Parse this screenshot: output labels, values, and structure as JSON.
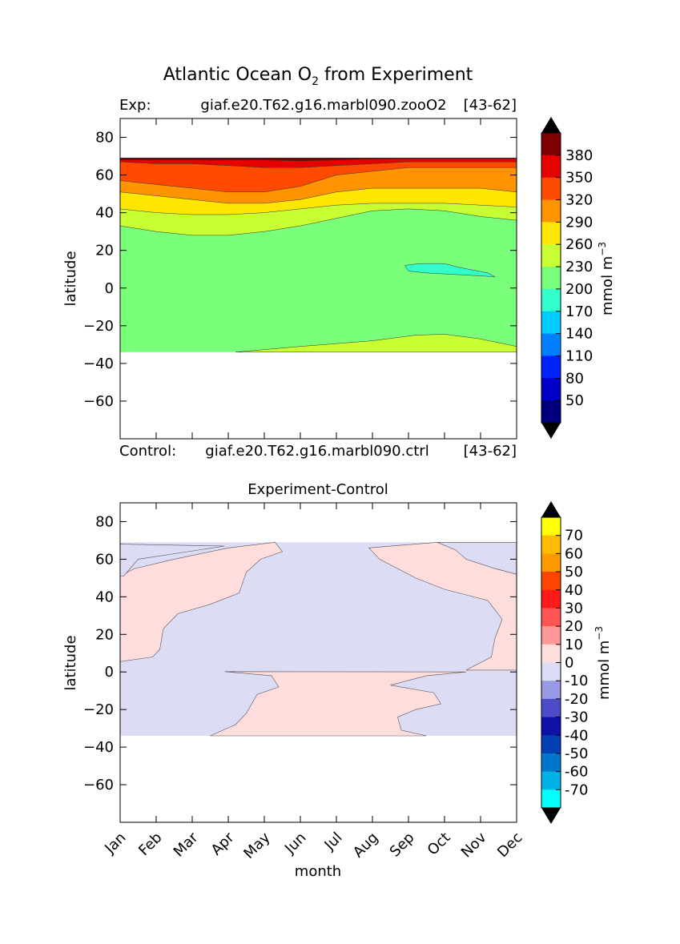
{
  "figure": {
    "title_prefix": "Atlantic Ocean O",
    "title_sub": "2",
    "title_suffix": " from Experiment"
  },
  "chart_data": [
    {
      "type": "heatmap",
      "panel": "top",
      "exp_label": "Exp:",
      "exp_name": "giaf.e20.T62.g16.marbl090.zooO2",
      "exp_range": "[43-62]",
      "ctrl_label": "Control:",
      "ctrl_name": "giaf.e20.T62.g16.marbl090.ctrl",
      "ctrl_range": "[43-62]",
      "ylabel": "latitude",
      "xlim": [
        0,
        11
      ],
      "ylim": [
        -80,
        90
      ],
      "yticks": [
        80,
        60,
        40,
        20,
        0,
        -20,
        -40,
        -60
      ],
      "data_lat_range": [
        -34,
        69
      ],
      "colorbar": {
        "unit": "mmol m",
        "unit_sup": "−3",
        "levels": [
          20,
          50,
          80,
          110,
          140,
          170,
          200,
          230,
          260,
          290,
          320,
          350,
          380,
          410
        ],
        "tick_labels": [
          "50",
          "80",
          "110",
          "140",
          "170",
          "200",
          "230",
          "260",
          "290",
          "320",
          "350",
          "380"
        ],
        "colors": [
          "#00007f",
          "#0000c8",
          "#0022ff",
          "#007fff",
          "#00ccff",
          "#33ffcc",
          "#7aff7a",
          "#c8ff33",
          "#ffe600",
          "#ff9400",
          "#ff4a00",
          "#e60000",
          "#7f0000"
        ]
      },
      "contours": {
        "band_200_230": [
          [
            0,
            33
          ],
          [
            1,
            30
          ],
          [
            2,
            28
          ],
          [
            3,
            28
          ],
          [
            4,
            30
          ],
          [
            5,
            33
          ],
          [
            6,
            37
          ],
          [
            7,
            41
          ],
          [
            8,
            42
          ],
          [
            9,
            41
          ],
          [
            10,
            38
          ],
          [
            11,
            36
          ]
        ],
        "band_230_260": [
          [
            0,
            42
          ],
          [
            1,
            40
          ],
          [
            2,
            39
          ],
          [
            3,
            39
          ],
          [
            4,
            40
          ],
          [
            5,
            42
          ],
          [
            6,
            44
          ],
          [
            7,
            45
          ],
          [
            8,
            45
          ],
          [
            9,
            45
          ],
          [
            10,
            44
          ],
          [
            11,
            43
          ]
        ],
        "band_260_290": [
          [
            0,
            51
          ],
          [
            1,
            49
          ],
          [
            2,
            47
          ],
          [
            3,
            45
          ],
          [
            4,
            45
          ],
          [
            5,
            47
          ],
          [
            6,
            51
          ],
          [
            7,
            53
          ],
          [
            8,
            53
          ],
          [
            9,
            53
          ],
          [
            10,
            53
          ],
          [
            11,
            51
          ]
        ],
        "band_290_320": [
          [
            0,
            57
          ],
          [
            1,
            55
          ],
          [
            2,
            53
          ],
          [
            3,
            51
          ],
          [
            4,
            51
          ],
          [
            5,
            54
          ],
          [
            6,
            60
          ],
          [
            7,
            62
          ],
          [
            8,
            64
          ],
          [
            9,
            64
          ],
          [
            10,
            64
          ],
          [
            11,
            64
          ]
        ],
        "band_320_350": [
          [
            0,
            67
          ],
          [
            1,
            66
          ],
          [
            2,
            66
          ],
          [
            3,
            65
          ],
          [
            4,
            64
          ],
          [
            5,
            64
          ],
          [
            6,
            65
          ],
          [
            7,
            66
          ],
          [
            8,
            67
          ],
          [
            9,
            67
          ],
          [
            10,
            67
          ],
          [
            11,
            67
          ]
        ],
        "band_350_380": [
          [
            0,
            68
          ],
          [
            1,
            68
          ],
          [
            2,
            68
          ],
          [
            3,
            68
          ],
          [
            4,
            68
          ],
          [
            5,
            67.5
          ],
          [
            6,
            68
          ],
          [
            7,
            68.5
          ],
          [
            8,
            68.7
          ],
          [
            9,
            68.7
          ],
          [
            10,
            68.7
          ],
          [
            11,
            68.7
          ]
        ],
        "south_230": [
          [
            3.2,
            -34
          ],
          [
            5,
            -31
          ],
          [
            7,
            -28
          ],
          [
            8.2,
            -25
          ],
          [
            9,
            -24.5
          ],
          [
            10,
            -27
          ],
          [
            11,
            -31
          ]
        ],
        "patch_170": [
          [
            7.9,
            12
          ],
          [
            8.3,
            13
          ],
          [
            9,
            13
          ],
          [
            9.4,
            11
          ],
          [
            10.2,
            8
          ],
          [
            10.4,
            6
          ],
          [
            9.5,
            7
          ],
          [
            8.5,
            8
          ],
          [
            8,
            9
          ]
        ]
      }
    },
    {
      "type": "heatmap",
      "panel": "bottom",
      "title": "Experiment-Control",
      "xlabel": "month",
      "ylabel": "latitude",
      "xlim": [
        0,
        11
      ],
      "ylim": [
        -80,
        90
      ],
      "yticks": [
        80,
        60,
        40,
        20,
        0,
        -20,
        -40,
        -60
      ],
      "categories": [
        "Jan",
        "Feb",
        "Mar",
        "Apr",
        "May",
        "Jun",
        "Jul",
        "Aug",
        "Sep",
        "Oct",
        "Nov",
        "Dec"
      ],
      "data_lat_range": [
        -34,
        69
      ],
      "colorbar": {
        "unit": "mmol m",
        "unit_sup": "−3",
        "levels": [
          -80,
          -70,
          -60,
          -50,
          -40,
          -30,
          -20,
          -10,
          0,
          10,
          20,
          30,
          40,
          50,
          60,
          70,
          80
        ],
        "tick_labels": [
          "70",
          "60",
          "50",
          "40",
          "30",
          "20",
          "10",
          "0",
          "-10",
          "-20",
          "-30",
          "-40",
          "-50",
          "-60",
          "-70"
        ],
        "colors": [
          "#00ffff",
          "#00b2e6",
          "#0077cc",
          "#0040b3",
          "#1010a6",
          "#4c4cc8",
          "#9999e6",
          "#dcdcf4",
          "#ffdddd",
          "#ff9999",
          "#ff5555",
          "#ff1a1a",
          "#ff4400",
          "#ff9900",
          "#ffbb00",
          "#ffff00"
        ]
      },
      "regions": {
        "positive_west": [
          [
            0,
            68
          ],
          [
            2.9,
            67
          ],
          [
            0.5,
            60
          ],
          [
            0.1,
            51
          ],
          [
            0,
            51
          ]
        ],
        "positive_west_main": [
          [
            0,
            51
          ],
          [
            0.4,
            55
          ],
          [
            1.5,
            60
          ],
          [
            3,
            66
          ],
          [
            4.3,
            69
          ],
          [
            4.5,
            64
          ],
          [
            3.9,
            60
          ],
          [
            3.5,
            53
          ],
          [
            3.3,
            42
          ],
          [
            2.5,
            36
          ],
          [
            1.6,
            31
          ],
          [
            1.2,
            23
          ],
          [
            1.1,
            12
          ],
          [
            0.9,
            8
          ],
          [
            0,
            5.5
          ]
        ],
        "negative_center": [
          [
            4.3,
            69
          ],
          [
            7.0,
            69
          ],
          [
            6.8,
            64
          ],
          [
            7.6,
            56
          ],
          [
            8.1,
            45
          ],
          [
            9.3,
            41
          ],
          [
            10,
            35
          ],
          [
            10.4,
            24
          ],
          [
            10.2,
            18
          ],
          [
            9.4,
            14
          ],
          [
            9,
            8
          ],
          [
            8.5,
            6
          ],
          [
            6.5,
            4
          ],
          [
            5,
            2.5
          ],
          [
            3,
            0.5
          ],
          [
            2.2,
            0
          ]
        ],
        "positive_south": [
          [
            2.9,
            0.2
          ],
          [
            4.2,
            -2
          ],
          [
            4.4,
            -8
          ],
          [
            3.8,
            -12
          ],
          [
            3.5,
            -22
          ],
          [
            3.2,
            -28
          ],
          [
            2.5,
            -34
          ],
          [
            8.5,
            -34
          ],
          [
            7.8,
            -31
          ],
          [
            7.7,
            -24
          ],
          [
            8.2,
            -20
          ],
          [
            8.9,
            -17
          ],
          [
            8.7,
            -11
          ],
          [
            7.5,
            -7
          ],
          [
            8.5,
            -2
          ],
          [
            9.6,
            0
          ]
        ],
        "positive_east": [
          [
            8.8,
            69
          ],
          [
            9.4,
            65
          ],
          [
            9.6,
            60
          ],
          [
            10.4,
            55
          ],
          [
            11,
            52
          ],
          [
            11,
            1
          ],
          [
            9.6,
            1
          ],
          [
            10.3,
            8
          ],
          [
            10.4,
            18
          ],
          [
            10.6,
            28
          ],
          [
            10.2,
            38
          ],
          [
            9,
            44
          ],
          [
            8.2,
            50
          ],
          [
            7.2,
            60
          ],
          [
            6.9,
            66
          ]
        ],
        "negative_east_top": [
          [
            8.8,
            69
          ],
          [
            11,
            69
          ],
          [
            11,
            52
          ],
          [
            10.4,
            55
          ],
          [
            9.6,
            60
          ],
          [
            9.3,
            65
          ]
        ]
      }
    }
  ]
}
